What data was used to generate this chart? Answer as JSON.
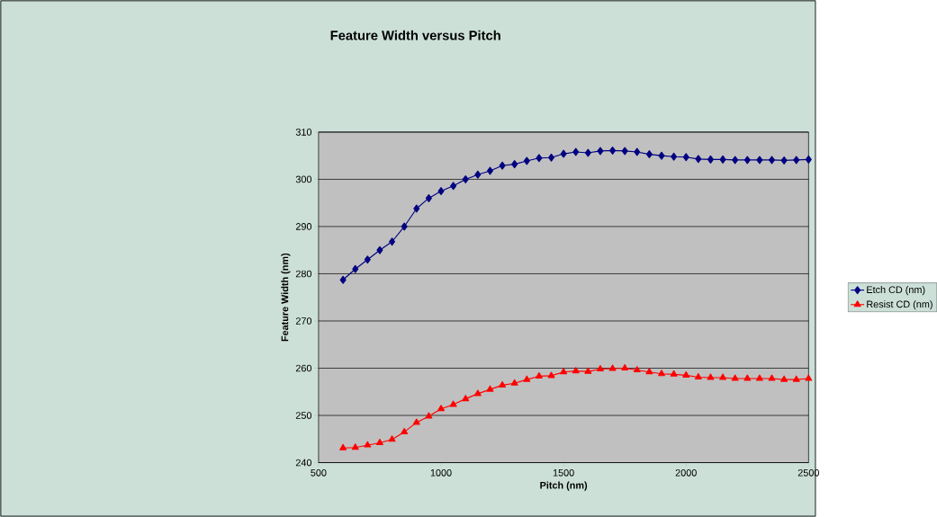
{
  "chart_data": {
    "type": "line",
    "title": "Feature Width versus Pitch",
    "xlabel": "Pitch (nm)",
    "ylabel": "Feature Width (nm)",
    "x": [
      600,
      650,
      700,
      750,
      800,
      850,
      900,
      950,
      1000,
      1050,
      1100,
      1150,
      1200,
      1250,
      1300,
      1350,
      1400,
      1450,
      1500,
      1550,
      1600,
      1650,
      1700,
      1750,
      1800,
      1850,
      1900,
      1950,
      2000,
      2050,
      2100,
      2150,
      2200,
      2250,
      2300,
      2350,
      2400,
      2450,
      2500
    ],
    "series": [
      {
        "name": "Etch CD (nm)",
        "color": "#000080",
        "marker": "diamond",
        "values": [
          278.7,
          281,
          283,
          285,
          286.8,
          290,
          293.8,
          296,
          297.5,
          298.6,
          300,
          301,
          301.8,
          302.9,
          303.2,
          303.9,
          304.5,
          304.6,
          305.4,
          305.8,
          305.6,
          306,
          306.1,
          306,
          305.8,
          305.3,
          305,
          304.8,
          304.7,
          304.3,
          304.2,
          304.2,
          304.1,
          304.1,
          304.1,
          304.1,
          304,
          304.1,
          304.2
        ]
      },
      {
        "name": "Resist CD (nm)",
        "color": "#ff0000",
        "marker": "triangle",
        "values": [
          243.1,
          243.2,
          243.7,
          244.2,
          244.9,
          246.5,
          248.5,
          249.8,
          251.4,
          252.3,
          253.5,
          254.6,
          255.5,
          256.4,
          256.8,
          257.6,
          258.3,
          258.4,
          259.2,
          259.4,
          259.3,
          259.8,
          259.9,
          260,
          259.6,
          259.2,
          258.8,
          258.7,
          258.5,
          258.1,
          258,
          258,
          257.8,
          257.8,
          257.8,
          257.8,
          257.6,
          257.6,
          257.8
        ]
      }
    ],
    "xlim": [
      500,
      2500
    ],
    "ylim": [
      240,
      310
    ],
    "xticks": [
      500,
      1000,
      1500,
      2000,
      2500
    ],
    "yticks": [
      240,
      250,
      260,
      270,
      280,
      290,
      300,
      310
    ],
    "grid": "y",
    "legend": "right",
    "line_style": "solid"
  }
}
